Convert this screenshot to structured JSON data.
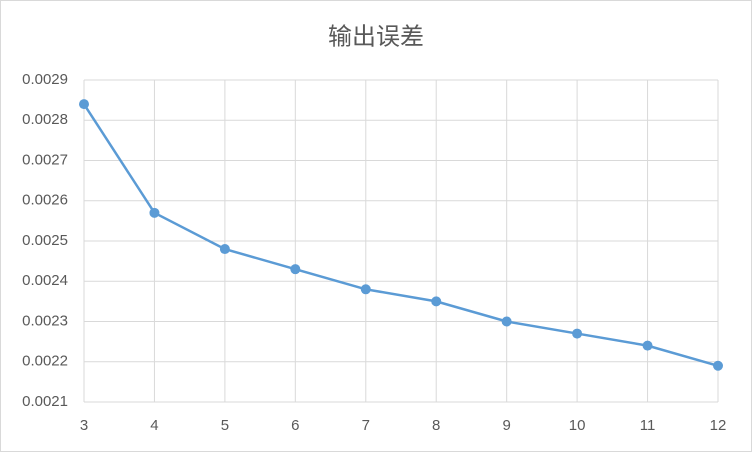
{
  "chart_data": {
    "type": "line",
    "title": "输出误差",
    "x": [
      3,
      4,
      5,
      6,
      7,
      8,
      9,
      10,
      11,
      12
    ],
    "series": [
      {
        "name": "输出误差",
        "color": "#5b9bd5",
        "values": [
          0.00284,
          0.00257,
          0.00248,
          0.00243,
          0.00238,
          0.00235,
          0.0023,
          0.00227,
          0.00224,
          0.00219
        ]
      }
    ],
    "xlim": [
      3,
      12
    ],
    "xticks": [
      3,
      4,
      5,
      6,
      7,
      8,
      9,
      10,
      11,
      12
    ],
    "ylim": [
      0.0021,
      0.0029
    ],
    "yticks": [
      0.0021,
      0.0022,
      0.0023,
      0.0024,
      0.0025,
      0.0026,
      0.0027,
      0.0028,
      0.0029
    ],
    "grid": true
  }
}
